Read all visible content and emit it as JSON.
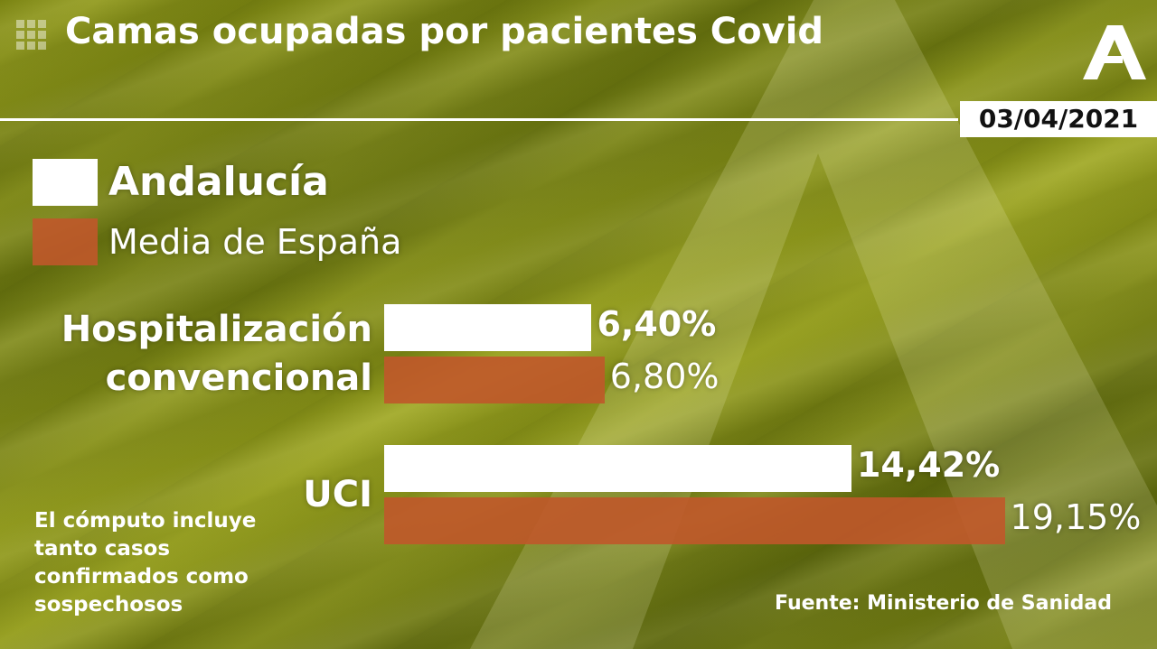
{
  "chart_data": {
    "type": "bar",
    "orientation": "horizontal",
    "title": "Camas ocupadas por pacientes Covid",
    "date": "03/04/2021",
    "categories": [
      "Hospitalización convencional",
      "UCI"
    ],
    "series": [
      {
        "name": "Andalucía",
        "color": "#ffffff",
        "values": [
          6.4,
          14.42
        ],
        "value_labels": [
          "6,40%",
          "14,42%"
        ]
      },
      {
        "name": "Media de España",
        "color": "#c0582a",
        "values": [
          6.8,
          19.15
        ],
        "value_labels": [
          "6,80%",
          "19,15%"
        ]
      }
    ],
    "note": "El cómputo incluye tanto casos confirmados como sospechosos",
    "source": "Fuente: Ministerio de Sanidad"
  }
}
